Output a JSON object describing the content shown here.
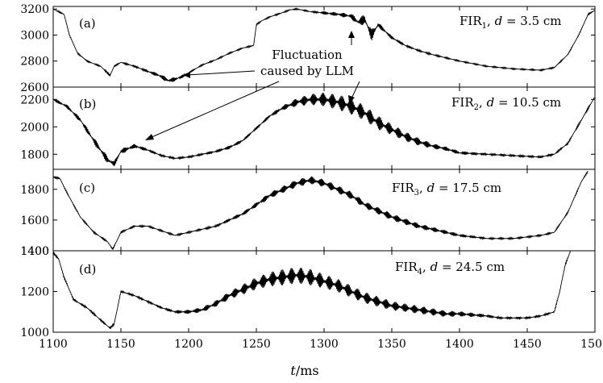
{
  "chart_data": {
    "type": "line",
    "xlabel_var": "t",
    "xlabel_unit": "/ms",
    "xlim": [
      1100,
      1500
    ],
    "x_ticks": [
      "1100",
      "1150",
      "1200",
      "1250",
      "1300",
      "1350",
      "1400",
      "1450",
      "1500"
    ],
    "annotation_line1": "Fluctuation",
    "annotation_line2": "caused by LLM",
    "panels": [
      {
        "label": "(a)",
        "title_main": "FIR",
        "title_sub": "1",
        "title_rest": ", ",
        "title_var": "d",
        "title_value": " = 3.5 cm",
        "ylim": [
          2600,
          3220
        ],
        "y_ticks": [
          "3200",
          "3000",
          "2800",
          "2600"
        ],
        "x": [
          1100,
          1108,
          1112,
          1118,
          1125,
          1135,
          1142,
          1145,
          1150,
          1160,
          1170,
          1178,
          1185,
          1190,
          1195,
          1200,
          1210,
          1220,
          1230,
          1240,
          1248,
          1250,
          1254,
          1260,
          1270,
          1275,
          1280,
          1285,
          1290,
          1300,
          1310,
          1320,
          1325,
          1330,
          1335,
          1340,
          1350,
          1360,
          1370,
          1380,
          1400,
          1420,
          1440,
          1460,
          1470,
          1480,
          1488,
          1495,
          1500
        ],
        "y": [
          3200,
          3160,
          3000,
          2860,
          2800,
          2760,
          2690,
          2760,
          2790,
          2760,
          2720,
          2690,
          2650,
          2660,
          2680,
          2710,
          2770,
          2810,
          2860,
          2900,
          2920,
          3080,
          3110,
          3140,
          3175,
          3195,
          3200,
          3190,
          3180,
          3170,
          3160,
          3145,
          3100,
          3120,
          3000,
          3080,
          2980,
          2920,
          2880,
          2850,
          2800,
          2760,
          2740,
          2730,
          2750,
          2850,
          3000,
          3160,
          3190
        ],
        "noise": [
          10,
          10,
          10,
          10,
          10,
          10,
          20,
          10,
          10,
          15,
          20,
          30,
          40,
          30,
          25,
          10,
          10,
          10,
          10,
          10,
          10,
          10,
          10,
          10,
          10,
          10,
          10,
          10,
          10,
          25,
          30,
          40,
          60,
          80,
          90,
          40,
          25,
          20,
          15,
          12,
          10,
          10,
          10,
          10,
          10,
          10,
          10,
          10,
          10
        ]
      },
      {
        "label": "(b)",
        "title_main": "FIR",
        "title_sub": "2",
        "title_rest": ", ",
        "title_var": "d",
        "title_value": " = 10.5 cm",
        "ylim": [
          1690,
          2290
        ],
        "y_ticks": [
          "2200",
          "2000",
          "1800"
        ],
        "x": [
          1100,
          1110,
          1120,
          1130,
          1140,
          1145,
          1150,
          1160,
          1170,
          1180,
          1190,
          1200,
          1210,
          1220,
          1230,
          1240,
          1250,
          1260,
          1270,
          1280,
          1290,
          1300,
          1310,
          1320,
          1330,
          1340,
          1350,
          1360,
          1370,
          1380,
          1390,
          1400,
          1420,
          1440,
          1460,
          1470,
          1480,
          1490,
          1500
        ],
        "y": [
          2200,
          2150,
          2050,
          1900,
          1760,
          1730,
          1820,
          1860,
          1830,
          1790,
          1770,
          1780,
          1800,
          1820,
          1850,
          1900,
          1990,
          2080,
          2140,
          2180,
          2200,
          2200,
          2180,
          2150,
          2100,
          2030,
          1980,
          1930,
          1890,
          1860,
          1840,
          1810,
          1800,
          1790,
          1780,
          1800,
          1880,
          2050,
          2220
        ],
        "noise": [
          20,
          25,
          35,
          45,
          55,
          40,
          40,
          30,
          20,
          15,
          15,
          15,
          15,
          20,
          25,
          20,
          20,
          25,
          35,
          60,
          80,
          100,
          110,
          120,
          110,
          100,
          80,
          70,
          55,
          40,
          30,
          25,
          15,
          15,
          15,
          15,
          15,
          15,
          15
        ]
      },
      {
        "label": "(c)",
        "title_main": "FIR",
        "title_sub": "3",
        "title_rest": ", ",
        "title_var": "d",
        "title_value": " = 17.5 cm",
        "ylim": [
          1400,
          1930
        ],
        "y_ticks": [
          "1800",
          "1600",
          "1400"
        ],
        "x": [
          1100,
          1105,
          1110,
          1120,
          1130,
          1140,
          1144,
          1150,
          1160,
          1170,
          1180,
          1190,
          1200,
          1210,
          1220,
          1230,
          1240,
          1250,
          1260,
          1270,
          1280,
          1290,
          1300,
          1310,
          1320,
          1330,
          1340,
          1350,
          1360,
          1370,
          1380,
          1390,
          1400,
          1410,
          1420,
          1430,
          1440,
          1450,
          1460,
          1470,
          1480,
          1490,
          1495
        ],
        "y": [
          1880,
          1870,
          1780,
          1620,
          1520,
          1460,
          1410,
          1520,
          1560,
          1560,
          1530,
          1500,
          1520,
          1540,
          1560,
          1600,
          1640,
          1700,
          1760,
          1800,
          1840,
          1860,
          1840,
          1800,
          1760,
          1700,
          1660,
          1620,
          1590,
          1560,
          1540,
          1520,
          1500,
          1490,
          1480,
          1480,
          1480,
          1490,
          1500,
          1520,
          1650,
          1850,
          1920
        ],
        "noise": [
          10,
          10,
          10,
          10,
          10,
          10,
          10,
          10,
          10,
          10,
          10,
          10,
          10,
          10,
          15,
          20,
          25,
          30,
          40,
          45,
          50,
          50,
          50,
          50,
          50,
          45,
          45,
          45,
          40,
          35,
          30,
          25,
          20,
          15,
          10,
          10,
          10,
          10,
          10,
          10,
          10,
          10,
          10
        ]
      },
      {
        "label": "(d)",
        "title_main": "FIR",
        "title_sub": "4",
        "title_rest": ", ",
        "title_var": "d",
        "title_value": " = 24.5 cm",
        "ylim": [
          1000,
          1400
        ],
        "y_ticks": [
          "1400",
          "1200",
          "1000"
        ],
        "x": [
          1100,
          1104,
          1108,
          1115,
          1125,
          1135,
          1142,
          1145,
          1150,
          1160,
          1170,
          1180,
          1190,
          1200,
          1210,
          1220,
          1230,
          1240,
          1250,
          1260,
          1270,
          1280,
          1290,
          1300,
          1310,
          1320,
          1330,
          1340,
          1350,
          1360,
          1370,
          1380,
          1390,
          1400,
          1410,
          1420,
          1430,
          1440,
          1450,
          1460,
          1470,
          1474,
          1478,
          1482
        ],
        "y": [
          1390,
          1360,
          1270,
          1160,
          1120,
          1060,
          1020,
          1040,
          1200,
          1180,
          1150,
          1120,
          1100,
          1100,
          1110,
          1140,
          1180,
          1210,
          1240,
          1260,
          1270,
          1280,
          1270,
          1250,
          1230,
          1200,
          1170,
          1150,
          1130,
          1120,
          1110,
          1100,
          1090,
          1090,
          1085,
          1080,
          1070,
          1070,
          1070,
          1080,
          1100,
          1200,
          1330,
          1400
        ],
        "noise": [
          10,
          10,
          10,
          10,
          10,
          10,
          10,
          10,
          10,
          10,
          10,
          10,
          15,
          20,
          25,
          30,
          40,
          50,
          60,
          70,
          80,
          80,
          80,
          70,
          65,
          60,
          55,
          50,
          45,
          40,
          40,
          35,
          30,
          25,
          20,
          15,
          10,
          10,
          10,
          10,
          10,
          10,
          10,
          10
        ]
      }
    ]
  }
}
